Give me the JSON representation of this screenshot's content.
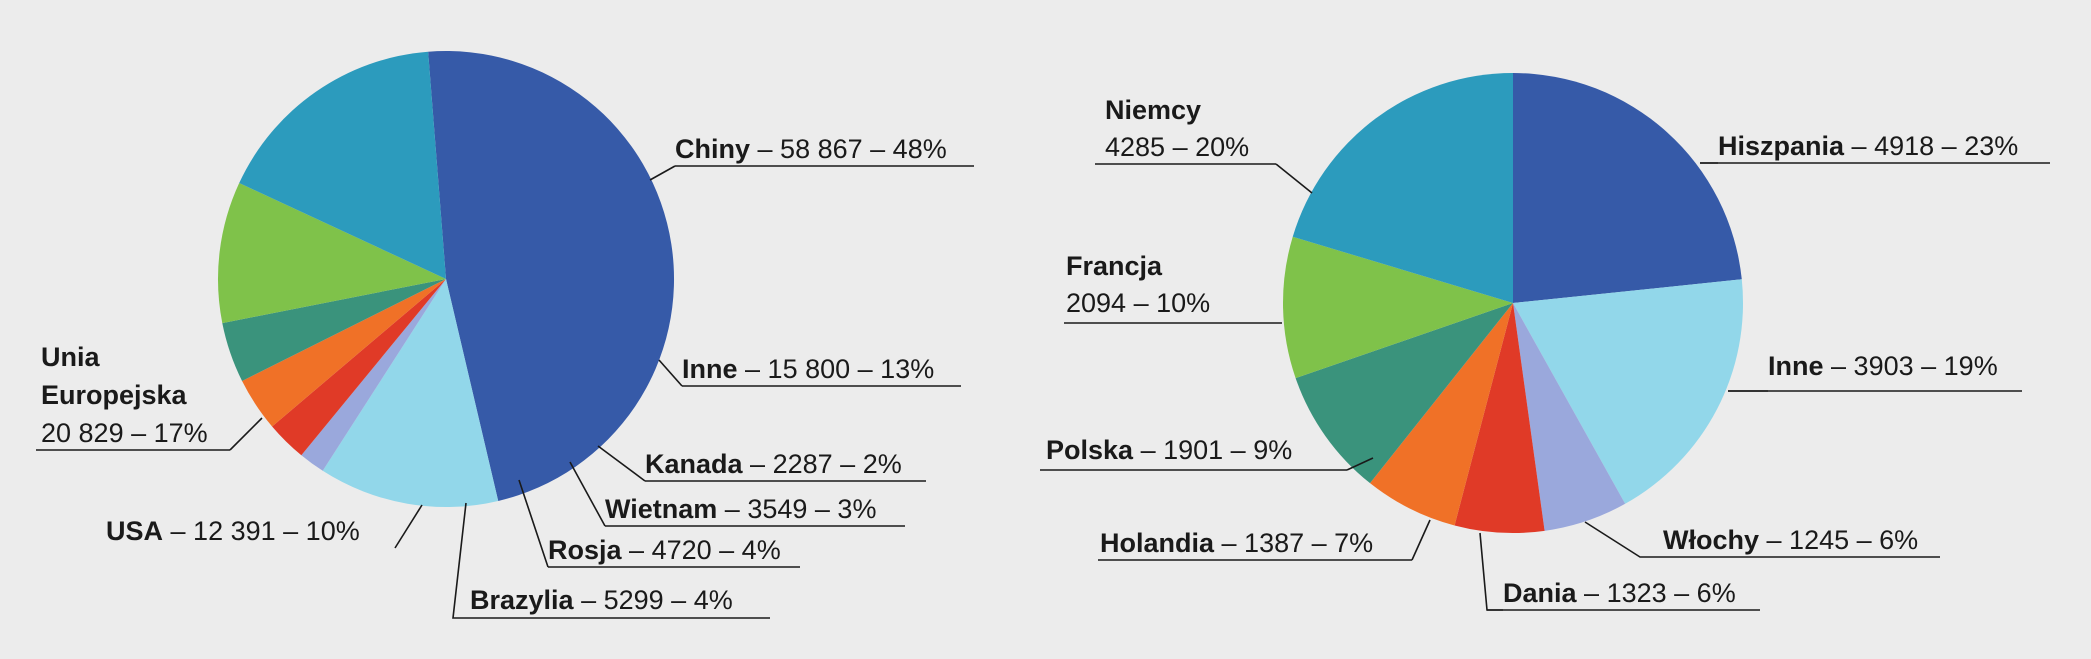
{
  "chart_data": [
    {
      "type": "pie",
      "title": "",
      "slices": [
        {
          "name": "Chiny",
          "value": 58867,
          "percent": "48%",
          "value_label": "58 867",
          "color": "#365aa8"
        },
        {
          "name": "Inne",
          "value": 15800,
          "percent": "13%",
          "value_label": "15 800",
          "color": "#92d7ea"
        },
        {
          "name": "Kanada",
          "value": 2287,
          "percent": "2%",
          "value_label": "2287",
          "color": "#9aa8dc"
        },
        {
          "name": "Wietnam",
          "value": 3549,
          "percent": "3%",
          "value_label": "3549",
          "color": "#e03a27"
        },
        {
          "name": "Rosja",
          "value": 4720,
          "percent": "4%",
          "value_label": "4720",
          "color": "#f07127"
        },
        {
          "name": "Brazylia",
          "value": 5299,
          "percent": "4%",
          "value_label": "5299",
          "color": "#3a937c"
        },
        {
          "name": "USA",
          "value": 12391,
          "percent": "10%",
          "value_label": "12 391",
          "color": "#7fc24a"
        },
        {
          "name": "Unia Europejska",
          "value": 20829,
          "percent": "17%",
          "value_label": "20 829",
          "color": "#2c9bbd"
        }
      ]
    },
    {
      "type": "pie",
      "title": "",
      "slices": [
        {
          "name": "Hiszpania",
          "value": 4918,
          "percent": "23%",
          "value_label": "4918",
          "color": "#365aa8"
        },
        {
          "name": "Inne",
          "value": 3903,
          "percent": "19%",
          "value_label": "3903",
          "color": "#92d7ea"
        },
        {
          "name": "Włochy",
          "value": 1245,
          "percent": "6%",
          "value_label": "1245",
          "color": "#9aa8dc"
        },
        {
          "name": "Dania",
          "value": 1323,
          "percent": "6%",
          "value_label": "1323",
          "color": "#e03a27"
        },
        {
          "name": "Holandia",
          "value": 1387,
          "percent": "7%",
          "value_label": "1387",
          "color": "#f07127"
        },
        {
          "name": "Polska",
          "value": 1901,
          "percent": "9%",
          "value_label": "1901",
          "color": "#3a937c"
        },
        {
          "name": "Francja",
          "value": 2094,
          "percent": "10%",
          "value_label": "2094",
          "color": "#7fc24a"
        },
        {
          "name": "Niemcy",
          "value": 4285,
          "percent": "20%",
          "value_label": "4285",
          "color": "#2c9bbd"
        }
      ]
    }
  ]
}
